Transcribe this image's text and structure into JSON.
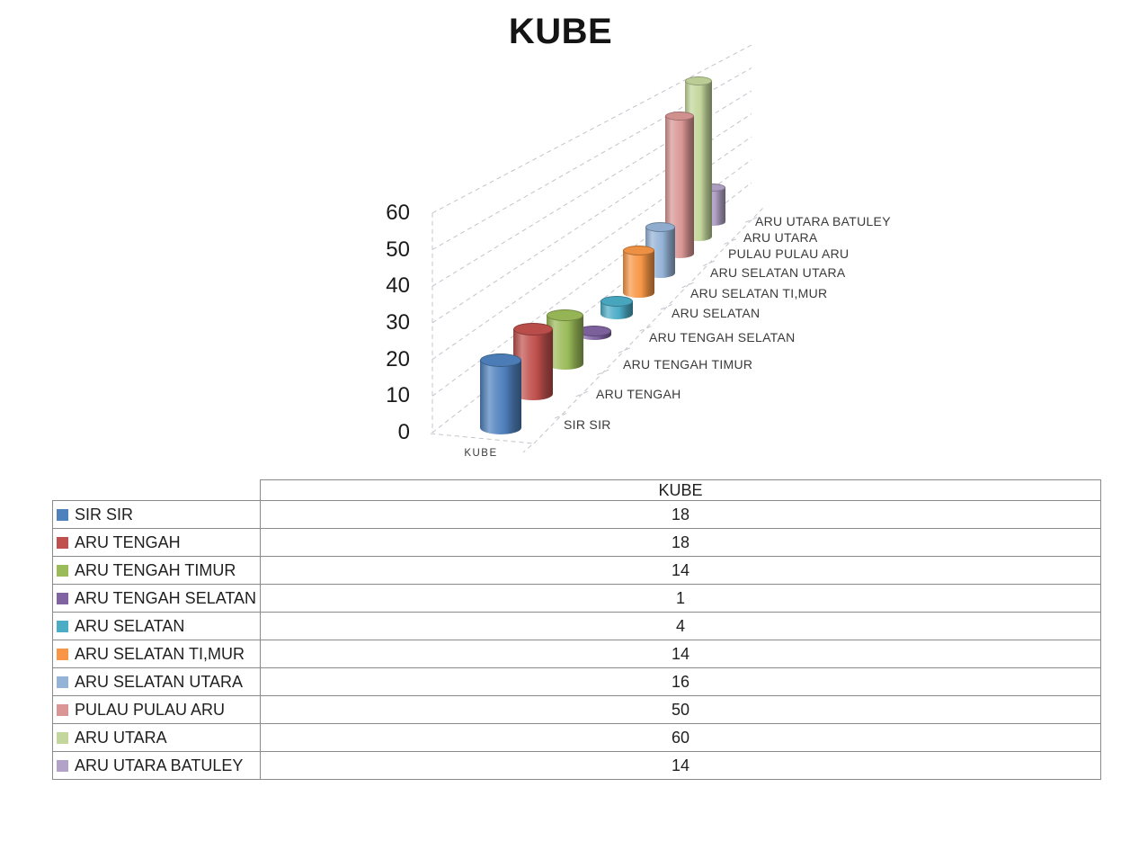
{
  "title": "KUBE",
  "chart_data": {
    "type": "bar",
    "variant": "3d-cylinder",
    "title": "KUBE",
    "category_axis_label": "KUBE",
    "series_axis_categories": [
      "SIR SIR",
      "ARU TENGAH",
      "ARU TENGAH TIMUR",
      "ARU TENGAH SELATAN",
      "ARU SELATAN",
      "ARU SELATAN TI,MUR",
      "ARU SELATAN UTARA",
      "PULAU PULAU ARU",
      "ARU UTARA",
      "ARU UTARA BATULEY"
    ],
    "values": [
      18,
      18,
      14,
      1,
      4,
      14,
      16,
      50,
      60,
      14
    ],
    "colors": [
      "#4F81BD",
      "#C0504D",
      "#9BBB59",
      "#8064A2",
      "#4BACC6",
      "#F79646",
      "#95B3D7",
      "#D99694",
      "#C3D69B",
      "#B3A2C7"
    ],
    "y_ticks": [
      0,
      10,
      20,
      30,
      40,
      50,
      60
    ],
    "ylim": [
      0,
      60
    ],
    "grid": "dashed",
    "legend_position": "table-left-column"
  },
  "table": {
    "value_column_header": "KUBE"
  }
}
